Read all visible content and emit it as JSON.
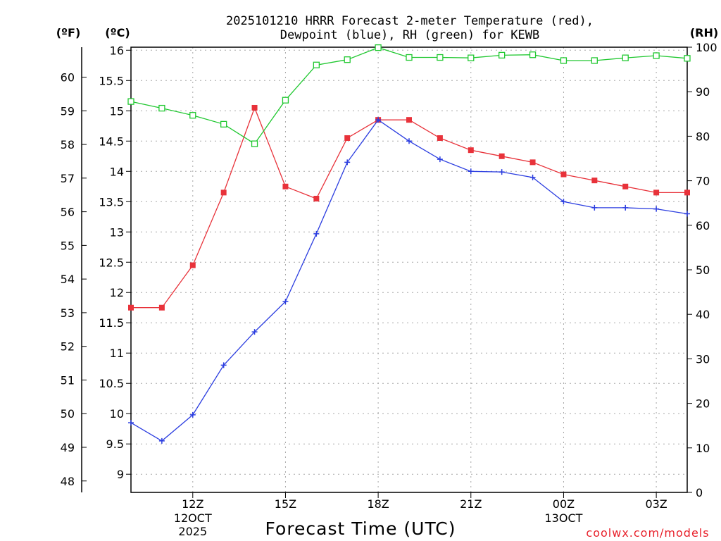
{
  "chart_data": {
    "type": "line",
    "title_line1": "2025101210 HRRR Forecast 2-meter Temperature (red),",
    "title_line2": "Dewpoint (blue), RH (green) for KEWB",
    "units": {
      "fahrenheit": "(ºF)",
      "celsius": "(ºC)",
      "rh": "(RH)"
    },
    "xlabel": "Forecast Time (UTC)",
    "credit": "coolwx.com/models",
    "x_ticks": [
      {
        "hour": 12,
        "label": "12Z",
        "sub": [
          "12OCT",
          "2025"
        ]
      },
      {
        "hour": 15,
        "label": "15Z",
        "sub": []
      },
      {
        "hour": 18,
        "label": "18Z",
        "sub": []
      },
      {
        "hour": 21,
        "label": "21Z",
        "sub": []
      },
      {
        "hour": 24,
        "label": "00Z",
        "sub": [
          "13OCT"
        ]
      },
      {
        "hour": 27,
        "label": "03Z",
        "sub": []
      }
    ],
    "xlim": [
      10,
      28
    ],
    "celsius_axis": {
      "range": [
        8.7,
        16.05
      ],
      "ticks": [
        9,
        9.5,
        10,
        10.5,
        11,
        11.5,
        12,
        12.5,
        13,
        13.5,
        14,
        14.5,
        15,
        15.5,
        16
      ]
    },
    "fahrenheit_axis": {
      "ticks": [
        48,
        49,
        50,
        51,
        52,
        53,
        54,
        55,
        56,
        57,
        58,
        59,
        60
      ]
    },
    "rh_axis": {
      "range": [
        0,
        100
      ],
      "ticks": [
        0,
        10,
        20,
        30,
        40,
        50,
        60,
        70,
        80,
        90,
        100
      ]
    },
    "grid": true,
    "series": [
      {
        "name": "Temperature",
        "axis": "celsius",
        "color": "#e8323a",
        "marker": "filled-square",
        "x": [
          10,
          11,
          12,
          13,
          14,
          15,
          16,
          17,
          18,
          19,
          20,
          21,
          22,
          23,
          24,
          25,
          26,
          27,
          28
        ],
        "values": [
          11.75,
          11.75,
          12.45,
          13.65,
          15.05,
          13.75,
          13.55,
          14.55,
          14.85,
          14.85,
          14.55,
          14.35,
          14.25,
          14.15,
          13.95,
          13.85,
          13.75,
          13.65,
          13.65
        ]
      },
      {
        "name": "Dewpoint",
        "axis": "celsius",
        "color": "#2c3ee0",
        "marker": "plus",
        "x": [
          10,
          11,
          12,
          13,
          14,
          15,
          16,
          17,
          18,
          19,
          20,
          21,
          22,
          23,
          24,
          25,
          26,
          27,
          28
        ],
        "values": [
          9.85,
          9.55,
          9.98,
          10.8,
          11.35,
          11.85,
          12.97,
          14.15,
          14.85,
          14.5,
          14.2,
          14.0,
          13.99,
          13.9,
          13.5,
          13.4,
          13.4,
          13.38,
          13.3
        ]
      },
      {
        "name": "RH",
        "axis": "rh",
        "color": "#20c830",
        "marker": "open-square",
        "x": [
          10,
          11,
          12,
          13,
          14,
          15,
          16,
          17,
          18,
          19,
          20,
          21,
          22,
          23,
          24,
          25,
          26,
          27,
          28
        ],
        "values": [
          87.8,
          86.3,
          84.7,
          82.7,
          78.3,
          88.1,
          96.0,
          97.2,
          99.9,
          97.7,
          97.7,
          97.6,
          98.2,
          98.3,
          97.0,
          97.0,
          97.6,
          98.1,
          97.5
        ]
      }
    ]
  }
}
